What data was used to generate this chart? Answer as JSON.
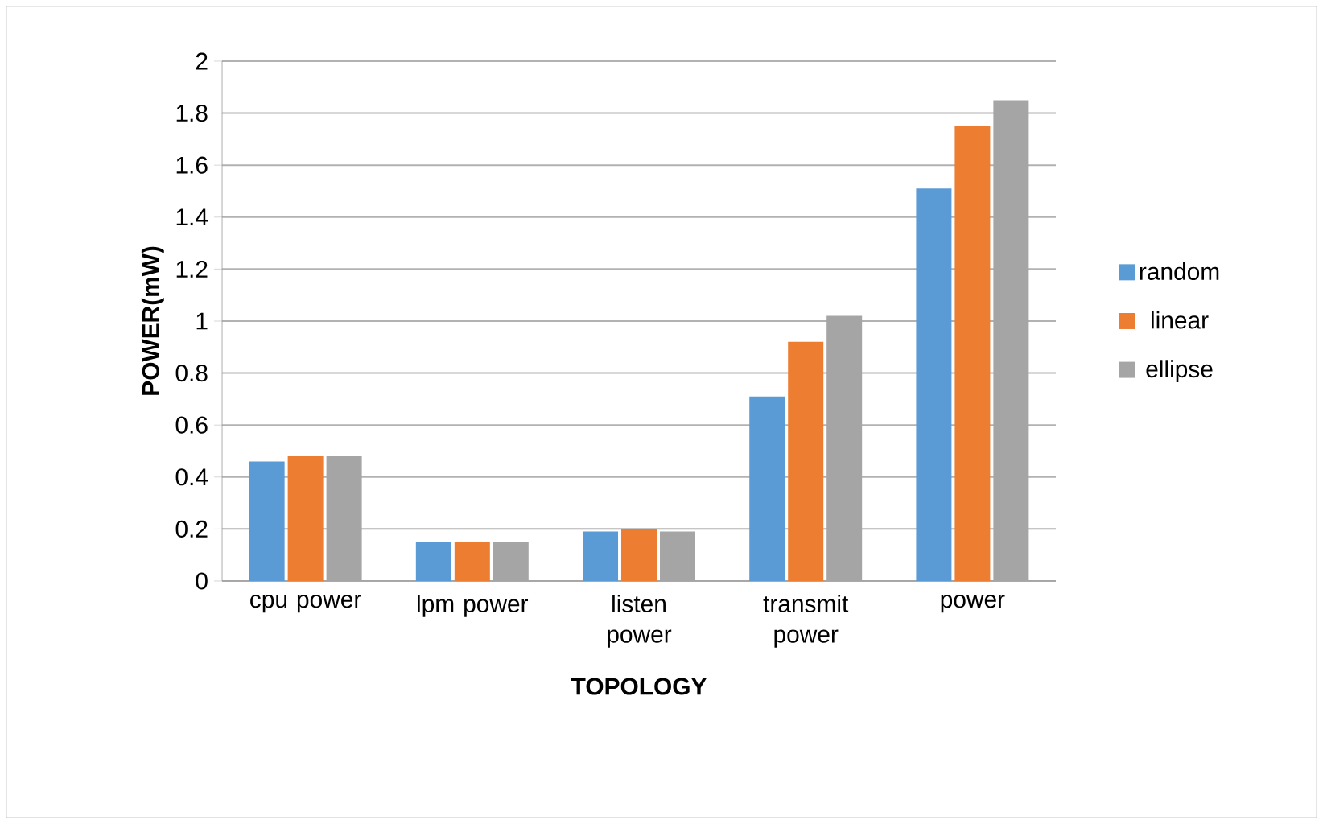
{
  "chart_data": {
    "type": "bar",
    "xlabel": "TOPOLOGY",
    "ylabel": "POWER(mW)",
    "categories": [
      "cpu power",
      "lpm power",
      "listen power",
      "transmit power",
      "power"
    ],
    "series": [
      {
        "name": "random",
        "color": "#5b9bd5",
        "values": [
          0.46,
          0.15,
          0.19,
          0.71,
          1.51
        ]
      },
      {
        "name": "linear",
        "color": "#ed7d31",
        "values": [
          0.48,
          0.15,
          0.2,
          0.92,
          1.75
        ]
      },
      {
        "name": "ellipse",
        "color": "#a5a5a5",
        "values": [
          0.48,
          0.15,
          0.19,
          1.02,
          1.85
        ]
      }
    ],
    "ylim": [
      0,
      2
    ],
    "yticks": [
      0,
      0.2,
      0.4,
      0.6,
      0.8,
      1,
      1.2,
      1.4,
      1.6,
      1.8,
      2
    ],
    "grid": "y",
    "legend": "right"
  }
}
